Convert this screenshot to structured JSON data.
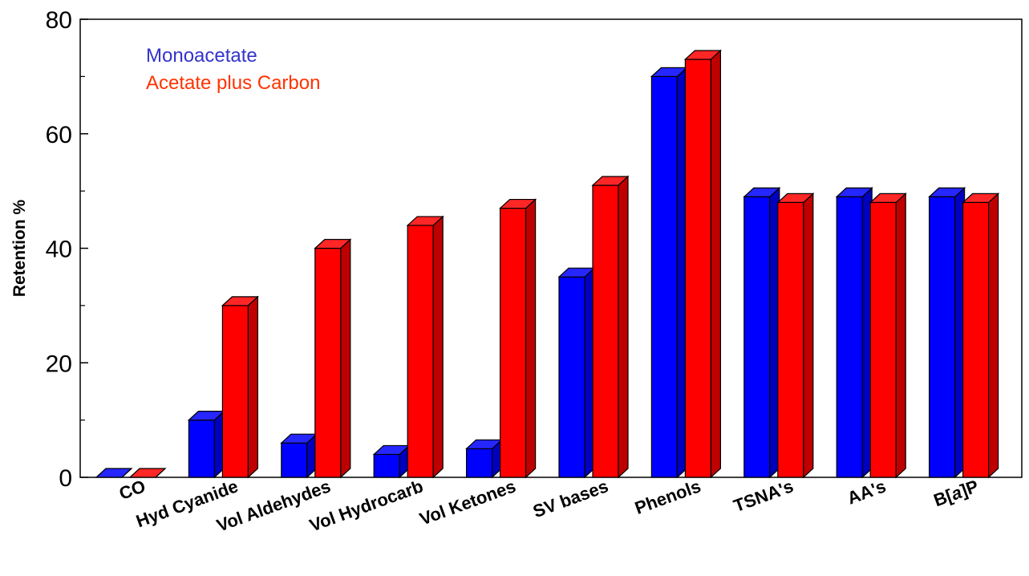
{
  "chart_data": {
    "type": "bar",
    "title": "",
    "xlabel": "",
    "ylabel": "Retention %",
    "ylim": [
      0,
      80
    ],
    "yticks": [
      0,
      20,
      40,
      60,
      80
    ],
    "categories": [
      "CO",
      "Hyd Cyanide",
      "Vol Aldehydes",
      "Vol Hydrocarb",
      "Vol Ketones",
      "SV bases",
      "Phenols",
      "TSNA's",
      "AA's",
      "B[a]P"
    ],
    "category_italic_part": {
      "9": "a"
    },
    "series": [
      {
        "name": "Monoacetate",
        "color": "#0000ff",
        "values": [
          0,
          10,
          6,
          4,
          5,
          35,
          70,
          49,
          49,
          49
        ]
      },
      {
        "name": "Acetate plus Carbon",
        "color": "#ff0000",
        "values": [
          0,
          30,
          40,
          44,
          47,
          51,
          73,
          48,
          48,
          48
        ]
      }
    ],
    "legend_position": "top-left",
    "legend_text_colors": [
      "#3333cc",
      "#ff3300"
    ],
    "grid": false,
    "bar_style": "3d"
  }
}
